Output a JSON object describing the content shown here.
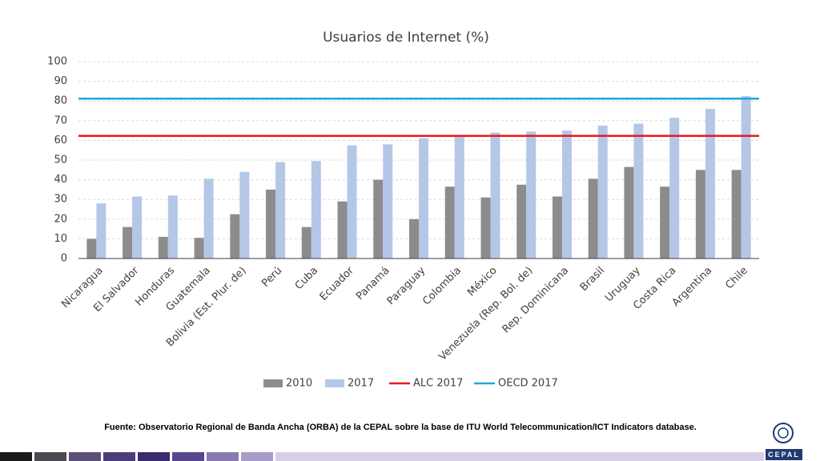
{
  "chart_data": {
    "type": "bar",
    "title": "Usuarios de Internet (%)",
    "categories": [
      "Nicaragua",
      "El Salvador",
      "Honduras",
      "Guatemala",
      "Bolivia (Est. Plur. de)",
      "Perú",
      "Cuba",
      "Ecuador",
      "Panamá",
      "Paraguay",
      "Colombia",
      "México",
      "Venezuela (Rep. Bol. de)",
      "Rep. Dominicana",
      "Brasil",
      "Uruguay",
      "Costa Rica",
      "Argentina",
      "Chile"
    ],
    "series": [
      {
        "name": "2010",
        "color": "#8c8c8c",
        "values": [
          10,
          16,
          11,
          10.5,
          22.5,
          35,
          16,
          29,
          40,
          20,
          36.5,
          31,
          37.5,
          31.5,
          40.5,
          46.5,
          36.5,
          45,
          45
        ]
      },
      {
        "name": "2017",
        "color": "#b4c7e7",
        "values": [
          28,
          31.5,
          32,
          40.5,
          44,
          49,
          49.5,
          57.5,
          58,
          61,
          62,
          64,
          64.5,
          65,
          67.5,
          68.5,
          71.5,
          76,
          82.5
        ]
      }
    ],
    "reference_lines": [
      {
        "name": "ALC 2017",
        "color": "#e8191f",
        "value": 62.3
      },
      {
        "name": "OECD 2017",
        "color": "#1aa9e0",
        "value": 81.2
      }
    ],
    "ylim": [
      0,
      100
    ],
    "yticks": [
      0,
      10,
      20,
      30,
      40,
      50,
      60,
      70,
      80,
      90,
      100
    ],
    "grid": true
  },
  "source": "Fuente: Observatorio Regional de Banda Ancha (ORBA) de la CEPAL sobre la base de ITU World Telecommunication/ICT Indicators database.",
  "logo_text": "CEPAL"
}
